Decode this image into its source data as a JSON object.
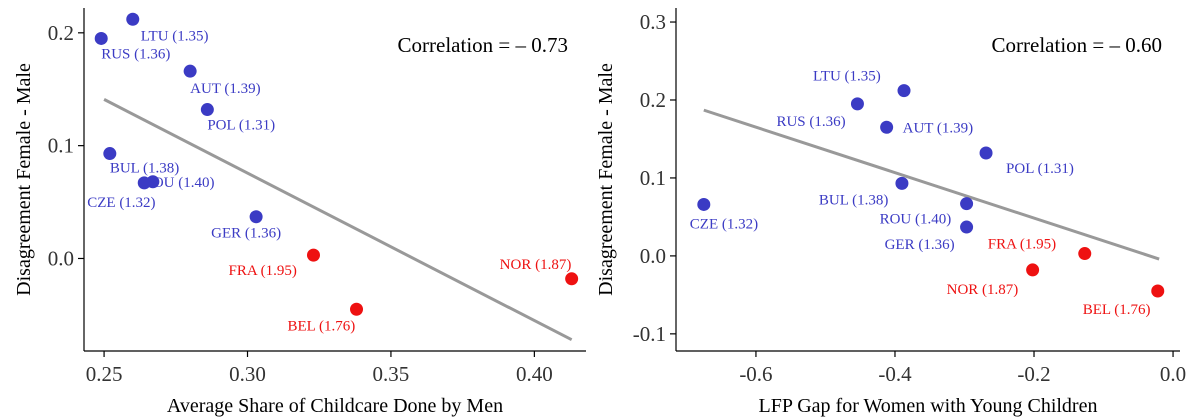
{
  "colors": {
    "low_fertility": "#3b3bc4",
    "high_fertility": "#ee1111",
    "fit_line": "#999999"
  },
  "chart_data": [
    {
      "type": "scatter",
      "xlabel": "Average Share of Childcare Done by Men",
      "ylabel": "Disagreement Female - Male",
      "annotation": "Correlation = – 0.73",
      "xlim": [
        0.243,
        0.418
      ],
      "ylim": [
        -0.082,
        0.222
      ],
      "xticks": [
        0.25,
        0.3,
        0.35,
        0.4
      ],
      "xtick_labels": [
        "0.25",
        "0.30",
        "0.35",
        "0.40"
      ],
      "yticks": [
        0.0,
        0.1,
        0.2
      ],
      "ytick_labels": [
        "0.0",
        "0.1",
        "0.2"
      ],
      "fit_line": {
        "x": [
          0.25,
          0.413
        ],
        "y": [
          0.141,
          -0.072
        ]
      },
      "points": [
        {
          "label": "LTU (1.35)",
          "x": 0.26,
          "y": 0.212,
          "group": "low",
          "dx": 8,
          "dy": 21,
          "anchor": "start"
        },
        {
          "label": "RUS (1.36)",
          "x": 0.249,
          "y": 0.195,
          "group": "low",
          "dx": 0,
          "dy": 20,
          "anchor": "start"
        },
        {
          "label": "AUT (1.39)",
          "x": 0.28,
          "y": 0.166,
          "group": "low",
          "dx": 0,
          "dy": 22,
          "anchor": "start"
        },
        {
          "label": "POL (1.31)",
          "x": 0.286,
          "y": 0.132,
          "group": "low",
          "dx": 0,
          "dy": 20,
          "anchor": "start"
        },
        {
          "label": "BUL (1.38)",
          "x": 0.252,
          "y": 0.093,
          "group": "low",
          "dx": 0,
          "dy": 19,
          "anchor": "start"
        },
        {
          "label": "ROU (1.40)",
          "x": 0.267,
          "y": 0.068,
          "group": "low",
          "dx": -10,
          "dy": 5,
          "anchor": "start"
        },
        {
          "label": "CZE (1.32)",
          "x": 0.264,
          "y": 0.067,
          "group": "low",
          "dx": -57,
          "dy": 24,
          "anchor": "start"
        },
        {
          "label": "GER (1.36)",
          "x": 0.303,
          "y": 0.037,
          "group": "low",
          "dx": -45,
          "dy": 21,
          "anchor": "start"
        },
        {
          "label": "FRA (1.95)",
          "x": 0.323,
          "y": 0.003,
          "group": "high",
          "dx": -85,
          "dy": 20,
          "anchor": "start"
        },
        {
          "label": "NOR (1.87)",
          "x": 0.413,
          "y": -0.018,
          "group": "high",
          "dx": -72,
          "dy": -10,
          "anchor": "start"
        },
        {
          "label": "BEL (1.76)",
          "x": 0.338,
          "y": -0.045,
          "group": "high",
          "dx": -69,
          "dy": 21,
          "anchor": "start"
        }
      ]
    },
    {
      "type": "scatter",
      "xlabel": "LFP Gap for Women with Young Children",
      "ylabel": "Disagreement Female - Male",
      "annotation": "Correlation = – 0.60",
      "xlim": [
        -0.715,
        0.01
      ],
      "ylim": [
        -0.122,
        0.318
      ],
      "xticks": [
        -0.6,
        -0.4,
        -0.2,
        0.0
      ],
      "xtick_labels": [
        "-0.6",
        "-0.4",
        "-0.2",
        "0.0"
      ],
      "yticks": [
        -0.1,
        0.0,
        0.1,
        0.2,
        0.3
      ],
      "ytick_labels": [
        "-0.1",
        "0.0",
        "0.1",
        "0.2",
        "0.3"
      ],
      "fit_line": {
        "x": [
          -0.675,
          -0.02
        ],
        "y": [
          0.187,
          -0.004
        ]
      },
      "points": [
        {
          "label": "LTU (1.35)",
          "x": -0.387,
          "y": 0.212,
          "group": "low",
          "dx": -91,
          "dy": -10,
          "anchor": "start"
        },
        {
          "label": "RUS (1.36)",
          "x": -0.454,
          "y": 0.195,
          "group": "low",
          "dx": -81,
          "dy": 22,
          "anchor": "start"
        },
        {
          "label": "AUT (1.39)",
          "x": -0.412,
          "y": 0.165,
          "group": "low",
          "dx": 16,
          "dy": 5,
          "anchor": "start"
        },
        {
          "label": "POL (1.31)",
          "x": -0.269,
          "y": 0.132,
          "group": "low",
          "dx": 20,
          "dy": 20,
          "anchor": "start"
        },
        {
          "label": "BUL (1.38)",
          "x": -0.39,
          "y": 0.093,
          "group": "low",
          "dx": -83,
          "dy": 21,
          "anchor": "start"
        },
        {
          "label": "ROU (1.40)",
          "x": -0.297,
          "y": 0.067,
          "group": "low",
          "dx": -87,
          "dy": 20,
          "anchor": "start"
        },
        {
          "label": "GER (1.36)",
          "x": -0.297,
          "y": 0.037,
          "group": "low",
          "dx": -82,
          "dy": 22,
          "anchor": "start"
        },
        {
          "label": "CZE (1.32)",
          "x": -0.675,
          "y": 0.066,
          "group": "low",
          "dx": -14,
          "dy": 24,
          "anchor": "start"
        },
        {
          "label": "FRA (1.95)",
          "x": -0.127,
          "y": 0.003,
          "group": "high",
          "dx": -97,
          "dy": -5,
          "anchor": "start"
        },
        {
          "label": "NOR (1.87)",
          "x": -0.202,
          "y": -0.018,
          "group": "high",
          "dx": -86,
          "dy": 24,
          "anchor": "start"
        },
        {
          "label": "BEL (1.76)",
          "x": -0.022,
          "y": -0.045,
          "group": "high",
          "dx": -75,
          "dy": 23,
          "anchor": "start"
        }
      ]
    }
  ]
}
